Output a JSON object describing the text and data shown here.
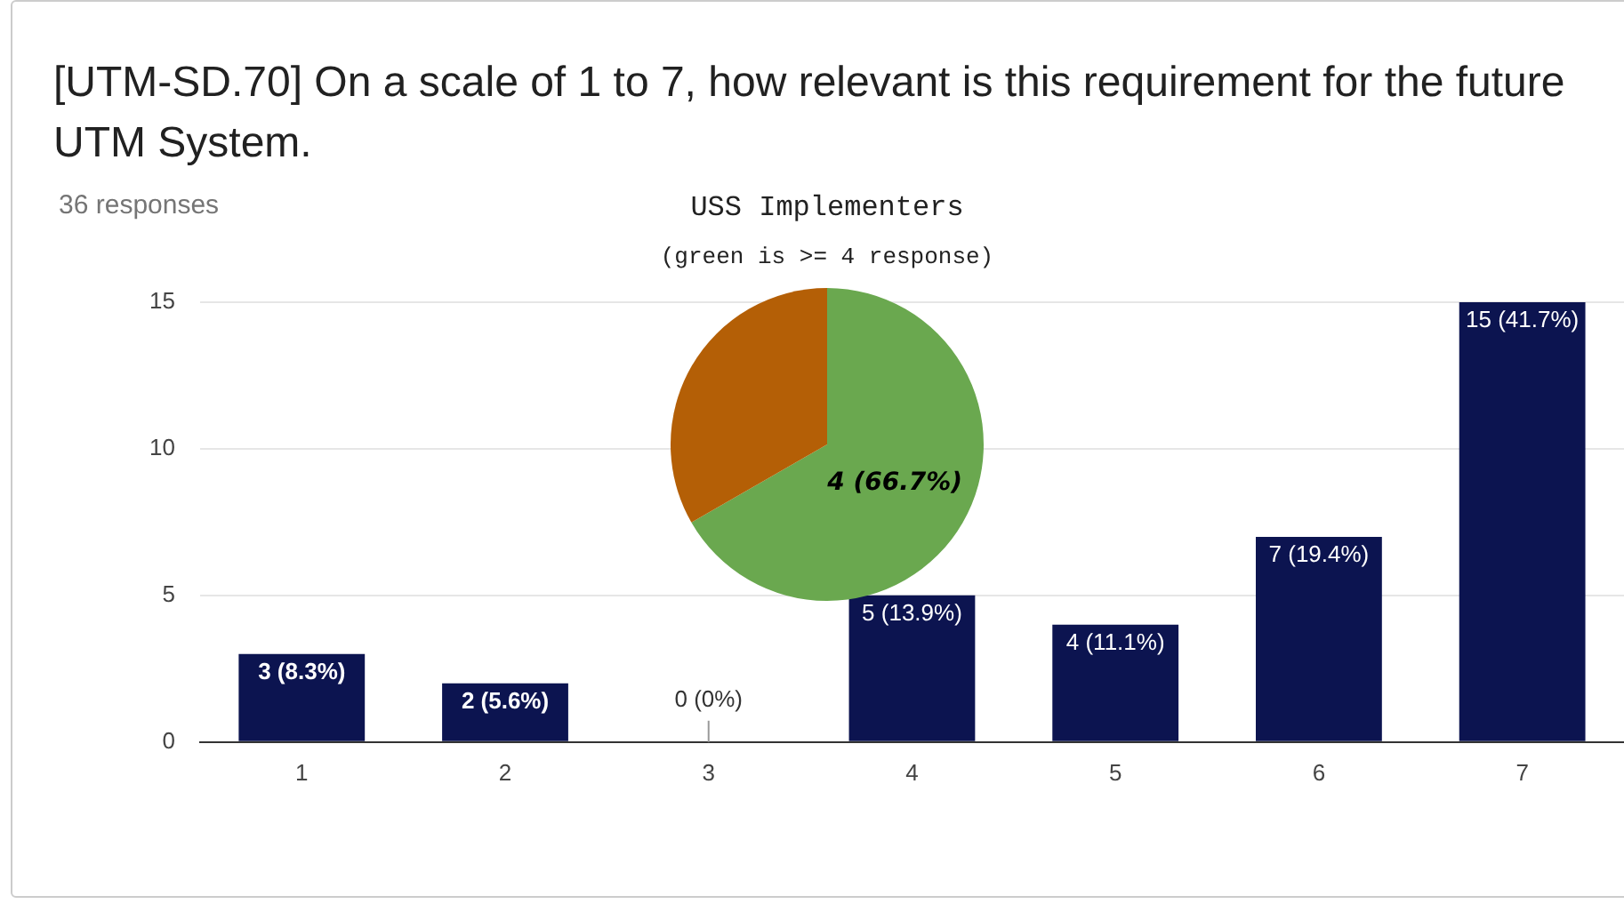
{
  "chart_data": [
    {
      "type": "bar",
      "title": "[UTM-SD.70] On a scale of 1 to 7, how relevant is this requirement for the future UTM System.",
      "subtitle": "36 responses",
      "categories": [
        "1",
        "2",
        "3",
        "4",
        "5",
        "6",
        "7"
      ],
      "values": [
        3,
        2,
        0,
        5,
        4,
        7,
        15
      ],
      "value_labels": [
        "3 (8.3%)",
        "2 (5.6%)",
        "0 (0%)",
        "5 (13.9%)",
        "4 (11.1%)",
        "7 (19.4%)",
        "15 (41.7%)"
      ],
      "color": "#0c1450",
      "ylim": [
        0,
        15
      ],
      "yticks": [
        0,
        5,
        10,
        15
      ],
      "grid": "y"
    },
    {
      "type": "pie",
      "title": "USS Implementers",
      "subtitle": "(green is >= 4 response)",
      "categories": [
        null,
        null
      ],
      "values": [
        66.7,
        33.3
      ],
      "colors": [
        "#6aa84f",
        "#b45f06"
      ],
      "value_labels": [
        "4 (66.7%)",
        null
      ]
    }
  ]
}
